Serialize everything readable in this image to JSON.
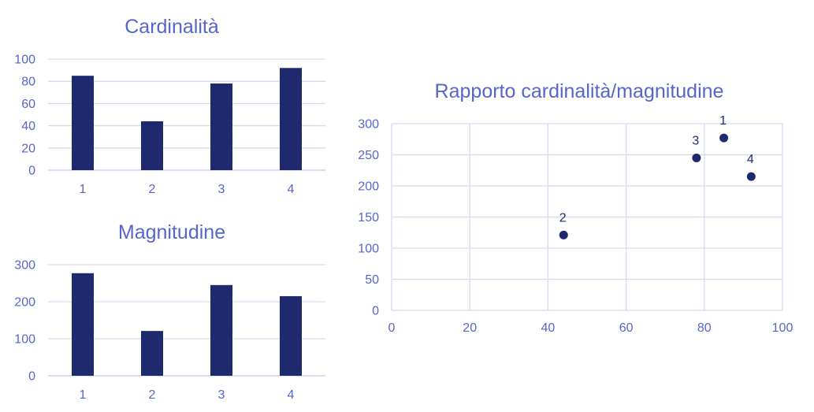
{
  "colors": {
    "mark": "#1f2a6e",
    "text": "#5466c9",
    "grid": "#d6d9f0"
  },
  "chart_data": [
    {
      "type": "bar",
      "title": "Cardinalità",
      "categories": [
        "1",
        "2",
        "3",
        "4"
      ],
      "values": [
        85,
        44,
        78,
        92
      ],
      "yticks": [
        "0",
        "20",
        "40",
        "60",
        "80",
        "100"
      ],
      "ylim": [
        0,
        100
      ],
      "grid": true
    },
    {
      "type": "bar",
      "title": "Magnitudine",
      "categories": [
        "1",
        "2",
        "3",
        "4"
      ],
      "values": [
        277,
        121,
        245,
        215
      ],
      "yticks": [
        "0",
        "100",
        "200",
        "300"
      ],
      "ylim": [
        0,
        300
      ],
      "grid": true
    },
    {
      "type": "scatter",
      "title": "Rapporto cardinalità/magnitudine",
      "points": [
        {
          "label": "1",
          "x": 85,
          "y": 277
        },
        {
          "label": "2",
          "x": 44,
          "y": 121
        },
        {
          "label": "3",
          "x": 78,
          "y": 245
        },
        {
          "label": "4",
          "x": 92,
          "y": 215
        }
      ],
      "xticks": [
        "0",
        "20",
        "40",
        "60",
        "80",
        "100"
      ],
      "yticks": [
        "0",
        "50",
        "100",
        "150",
        "200",
        "250",
        "300"
      ],
      "xlim": [
        0,
        100
      ],
      "ylim": [
        0,
        300
      ],
      "grid": true
    }
  ]
}
